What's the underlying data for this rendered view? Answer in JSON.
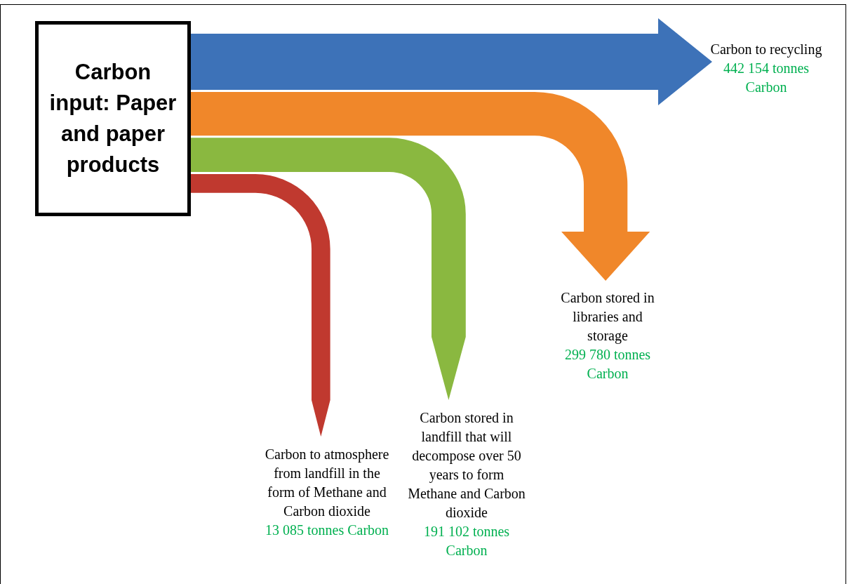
{
  "chart_data": {
    "type": "other",
    "title": "Carbon input: Paper and paper products",
    "categories": [
      "Carbon to recycling",
      "Carbon stored in libraries and storage",
      "Carbon stored in landfill that will decompose over 50 years to form Methane and Carbon dioxide",
      "Carbon to atmosphere from landfill in the form of Methane and Carbon dioxide"
    ],
    "values": [
      442154,
      299780,
      191102,
      13085
    ],
    "colors": [
      "#3d72b8",
      "#f0872a",
      "#8ab840",
      "#c0392f"
    ],
    "value_labels": [
      "442 154 tonnes Carbon",
      "299 780 tonnes Carbon",
      "191 102 tonnes Carbon",
      "13 085 tonnes Carbon"
    ]
  }
}
